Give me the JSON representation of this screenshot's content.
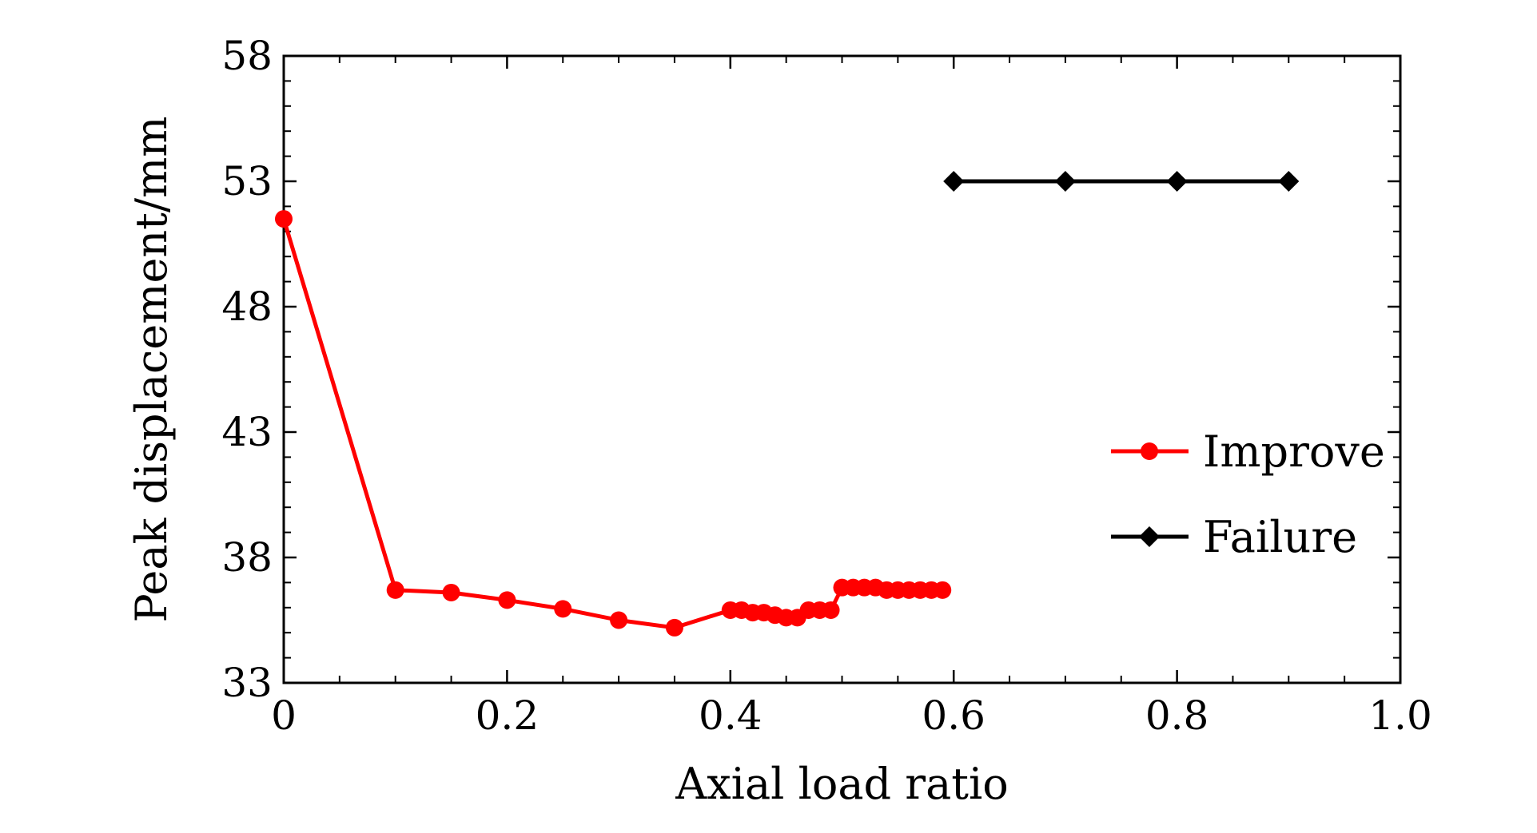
{
  "chart_data": {
    "type": "line",
    "title": "",
    "xlabel": "Axial load ratio",
    "ylabel": "Peak displacement/mm",
    "xlim": [
      0,
      1.0
    ],
    "ylim": [
      33,
      58
    ],
    "x_ticks": [
      0,
      0.2,
      0.4,
      0.6,
      0.8,
      1.0
    ],
    "x_tick_labels": [
      "0",
      "0.2",
      "0.4",
      "0.6",
      "0.8",
      "1.0"
    ],
    "y_ticks": [
      33,
      38,
      43,
      48,
      53,
      58
    ],
    "y_tick_labels": [
      "33",
      "38",
      "43",
      "48",
      "53",
      "58"
    ],
    "grid": false,
    "legend_position": "right",
    "series": [
      {
        "name": "Improve",
        "color": "#ff0000",
        "marker": "circle",
        "points": [
          {
            "x": 0.0,
            "y": 51.5
          },
          {
            "x": 0.1,
            "y": 36.7
          },
          {
            "x": 0.15,
            "y": 36.6
          },
          {
            "x": 0.2,
            "y": 36.3
          },
          {
            "x": 0.25,
            "y": 35.95
          },
          {
            "x": 0.3,
            "y": 35.5
          },
          {
            "x": 0.35,
            "y": 35.2
          },
          {
            "x": 0.4,
            "y": 35.9
          },
          {
            "x": 0.41,
            "y": 35.9
          },
          {
            "x": 0.42,
            "y": 35.8
          },
          {
            "x": 0.43,
            "y": 35.8
          },
          {
            "x": 0.44,
            "y": 35.7
          },
          {
            "x": 0.45,
            "y": 35.6
          },
          {
            "x": 0.46,
            "y": 35.6
          },
          {
            "x": 0.47,
            "y": 35.9
          },
          {
            "x": 0.48,
            "y": 35.9
          },
          {
            "x": 0.49,
            "y": 35.9
          },
          {
            "x": 0.5,
            "y": 36.8
          },
          {
            "x": 0.51,
            "y": 36.8
          },
          {
            "x": 0.52,
            "y": 36.8
          },
          {
            "x": 0.53,
            "y": 36.8
          },
          {
            "x": 0.54,
            "y": 36.7
          },
          {
            "x": 0.55,
            "y": 36.7
          },
          {
            "x": 0.56,
            "y": 36.7
          },
          {
            "x": 0.57,
            "y": 36.7
          },
          {
            "x": 0.58,
            "y": 36.7
          },
          {
            "x": 0.59,
            "y": 36.7
          }
        ]
      },
      {
        "name": "Failure",
        "color": "#000000",
        "marker": "diamond",
        "points": [
          {
            "x": 0.6,
            "y": 53.0
          },
          {
            "x": 0.7,
            "y": 53.0
          },
          {
            "x": 0.8,
            "y": 53.0
          },
          {
            "x": 0.9,
            "y": 53.0
          }
        ]
      }
    ]
  }
}
